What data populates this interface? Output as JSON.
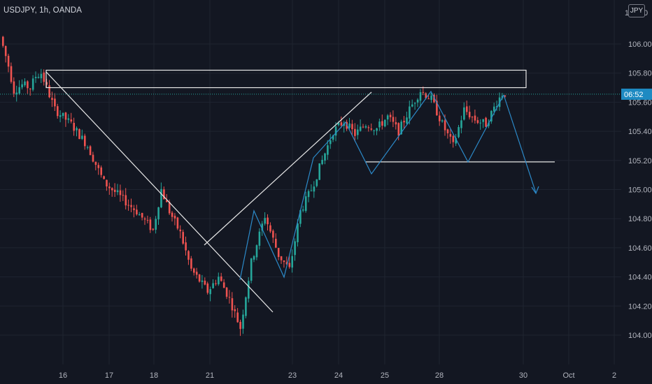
{
  "symbol_label": "USDJPY, 1h, OANDA",
  "currency_label": "JPY",
  "colors": {
    "background": "#131722",
    "grid": "#1f2430",
    "up": "#26a69a",
    "down": "#ef5350",
    "drawing_white": "#e8e8e8",
    "drawing_blue": "#2c8ac9",
    "price_box": "#1e8ac2",
    "axis_text": "#b2b5be"
  },
  "chart_data": {
    "type": "candlestick",
    "title": "USDJPY, 1h, OANDA",
    "y_axis_ticks": [
      "106.000",
      "105.800",
      "105.600",
      "105.400",
      "105.200",
      "105.000",
      "104.800",
      "104.600",
      "104.400",
      "104.200",
      "104.000"
    ],
    "y_axis_top_partial": [
      "106",
      "0"
    ],
    "x_axis_ticks": [
      "16",
      "17",
      "18",
      "21",
      "23",
      "24",
      "25",
      "28",
      "30",
      "Oct",
      "2"
    ],
    "ylim": [
      103.7,
      106.4
    ],
    "current_price_label": "06:52",
    "current_price": 105.655,
    "price_path": [
      [
        0,
        106.05
      ],
      [
        3,
        105.85
      ],
      [
        5,
        105.68
      ],
      [
        8,
        105.72
      ],
      [
        11,
        105.7
      ],
      [
        13,
        105.78
      ],
      [
        15,
        105.8
      ],
      [
        20,
        105.55
      ],
      [
        26,
        105.45
      ],
      [
        32,
        105.3
      ],
      [
        38,
        105.05
      ],
      [
        44,
        104.95
      ],
      [
        50,
        104.85
      ],
      [
        56,
        104.72
      ],
      [
        59,
        105.0
      ],
      [
        62,
        104.85
      ],
      [
        66,
        104.7
      ],
      [
        70,
        104.45
      ],
      [
        76,
        104.3
      ],
      [
        80,
        104.4
      ],
      [
        84,
        104.25
      ],
      [
        88,
        104.05
      ],
      [
        92,
        104.5
      ],
      [
        97,
        104.82
      ],
      [
        102,
        104.55
      ],
      [
        106,
        104.45
      ],
      [
        110,
        104.85
      ],
      [
        114,
        105.0
      ],
      [
        118,
        105.2
      ],
      [
        122,
        105.4
      ],
      [
        126,
        105.47
      ],
      [
        130,
        105.38
      ],
      [
        134,
        105.45
      ],
      [
        138,
        105.42
      ],
      [
        142,
        105.5
      ],
      [
        146,
        105.4
      ],
      [
        150,
        105.55
      ],
      [
        154,
        105.68
      ],
      [
        158,
        105.62
      ],
      [
        162,
        105.45
      ],
      [
        166,
        105.3
      ],
      [
        170,
        105.55
      ],
      [
        174,
        105.48
      ],
      [
        178,
        105.45
      ],
      [
        182,
        105.6
      ],
      [
        184,
        105.66
      ]
    ],
    "annotations": [
      {
        "type": "rectangle",
        "label": "resistance zone",
        "price_from": 105.7,
        "price_to": 105.82
      },
      {
        "type": "trendline",
        "label": "descending trendline"
      },
      {
        "type": "trendline",
        "label": "ascending trendline"
      },
      {
        "type": "horizontal_line",
        "label": "neckline",
        "price": 105.19
      },
      {
        "type": "zigzag",
        "label": "pattern path"
      },
      {
        "type": "arrow",
        "label": "projected move",
        "target_price": 104.98
      }
    ]
  }
}
